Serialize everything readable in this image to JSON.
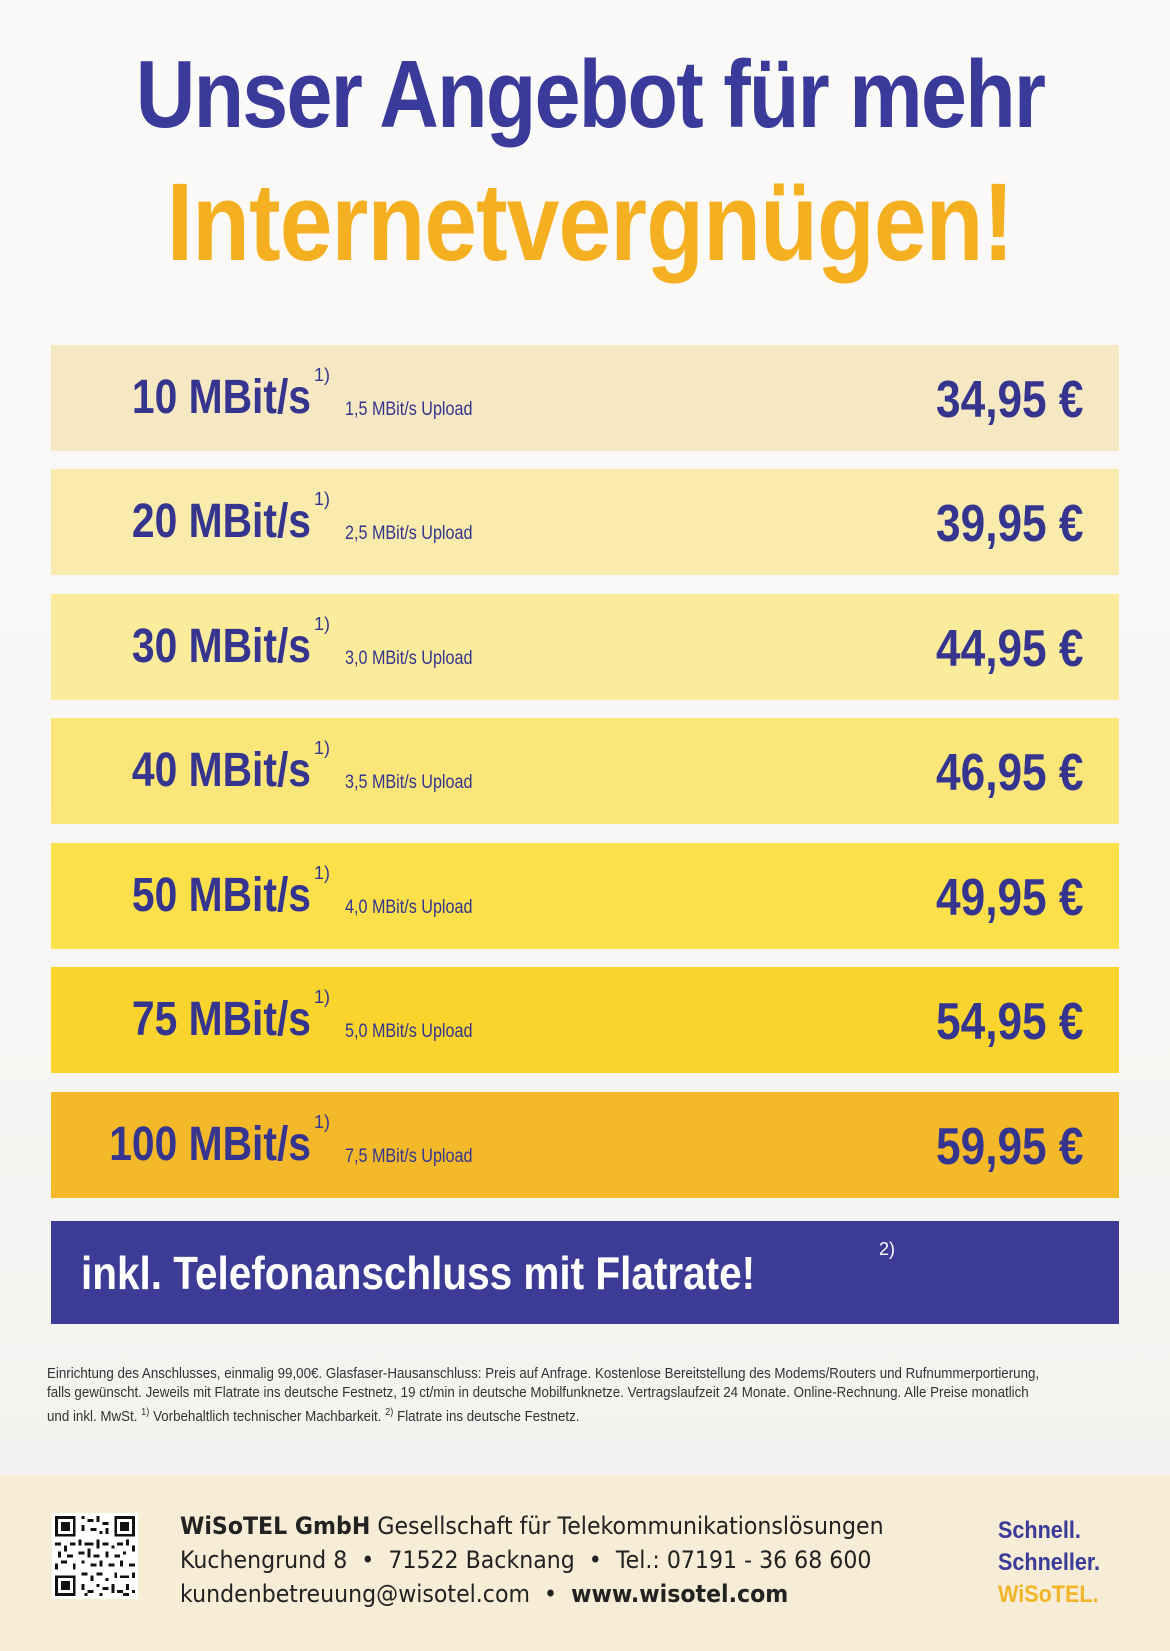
{
  "headline": {
    "line1": "Unser Angebot für mehr",
    "line2": "Internetvergnügen!"
  },
  "tiers": [
    {
      "speed": "10 MBit/s",
      "footnote_mark": "1)",
      "upload": "1,5 MBit/s Upload",
      "price": "34,95 €",
      "color": "#f6e8c2"
    },
    {
      "speed": "20 MBit/s",
      "footnote_mark": "1)",
      "upload": "2,5 MBit/s Upload",
      "price": "39,95 €",
      "color": "#f8ebab"
    },
    {
      "speed": "30 MBit/s",
      "footnote_mark": "1)",
      "upload": "3,0 MBit/s Upload",
      "price": "44,95 €",
      "color": "#faec9a"
    },
    {
      "speed": "40 MBit/s",
      "footnote_mark": "1)",
      "upload": "3,5 MBit/s Upload",
      "price": "46,95 €",
      "color": "#fbe67a"
    },
    {
      "speed": "50 MBit/s",
      "footnote_mark": "1)",
      "upload": "4,0 MBit/s Upload",
      "price": "49,95 €",
      "color": "#fbe04a"
    },
    {
      "speed": "75 MBit/s",
      "footnote_mark": "1)",
      "upload": "5,0 MBit/s Upload",
      "price": "54,95 €",
      "color": "#f8d42c"
    },
    {
      "speed": "100 MBit/s",
      "footnote_mark": "1)",
      "upload": "7,5 MBit/s Upload",
      "price": "59,95 €",
      "color": "#f3b929"
    }
  ],
  "flatrate": {
    "text": "inkl. Telefonanschluss mit Flatrate!",
    "footnote_mark": "2)"
  },
  "footnote": {
    "line1": "Einrichtung des Anschlusses, einmalig 99,00€. Glasfaser-Hausanschluss: Preis auf Anfrage. Kostenlose Bereitstellung des Modems/Routers und Rufnummerportierung,",
    "line2": "falls gewünscht. Jeweils mit Flatrate ins deutsche Festnetz, 19 ct/min in deutsche Mobilfunknetze. Vertragslaufzeit 24 Monate. Online-Rechnung. Alle Preise monatlich",
    "line3_a": "und inkl. MwSt.",
    "mark1": "1)",
    "line3_b": "Vorbehaltlich technischer Machbarkeit.",
    "mark2": "2)",
    "line3_c": "Flatrate ins deutsche Festnetz."
  },
  "footer": {
    "company_name": "WiSoTEL GmbH",
    "company_desc": "Gesellschaft für Telekommunikationslösungen",
    "street": "Kuchengrund 8",
    "city": "71522 Backnang",
    "tel_label": "Tel.:",
    "tel": "07191 - 36 68 600",
    "email": "kundenbetreuung@wisotel.com",
    "website": "www.wisotel.com",
    "bullet": "•",
    "slogan": [
      "Schnell.",
      "Schneller.",
      "WiSoTEL."
    ],
    "qr_icon": "qr-code-icon"
  }
}
